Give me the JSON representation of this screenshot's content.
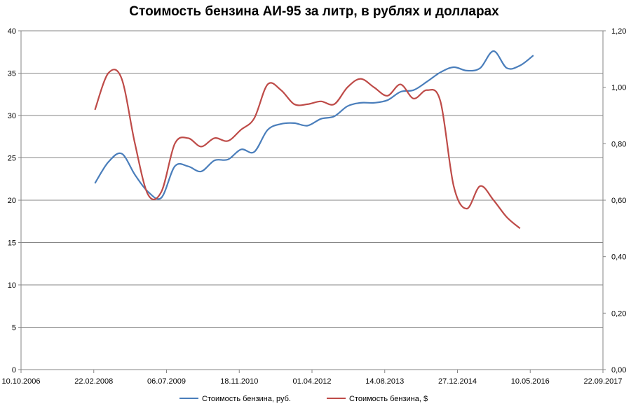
{
  "chart_data": {
    "type": "line",
    "title": "Стоимость бензина АИ-95 за литр, в рублях и долларах",
    "x_axis": {
      "type": "date",
      "range": [
        "2006-10-10",
        "2017-09-22"
      ],
      "tick_labels": [
        "10.10.2006",
        "22.02.2008",
        "06.07.2009",
        "18.11.2010",
        "01.04.2012",
        "14.08.2013",
        "27.12.2014",
        "10.05.2016",
        "22.09.2017"
      ]
    },
    "y_axis_left": {
      "range": [
        0,
        40
      ],
      "tick_labels": [
        "0",
        "5",
        "10",
        "15",
        "20",
        "25",
        "30",
        "35",
        "40"
      ]
    },
    "y_axis_right": {
      "range": [
        0,
        1.2
      ],
      "tick_labels": [
        "0,00",
        "0,20",
        "0,40",
        "0,60",
        "0,80",
        "1,00",
        "1,20"
      ]
    },
    "grid": true,
    "legend_position": "bottom",
    "series": [
      {
        "name": "Стоимость бензина, руб.",
        "axis": "left",
        "color": "#4a7ebb",
        "points": [
          [
            "2008-03-01",
            22.0
          ],
          [
            "2008-06-01",
            24.5
          ],
          [
            "2008-09-01",
            25.5
          ],
          [
            "2008-12-01",
            23.0
          ],
          [
            "2009-03-01",
            21.0
          ],
          [
            "2009-06-01",
            20.3
          ],
          [
            "2009-09-01",
            24.0
          ],
          [
            "2009-12-01",
            24.0
          ],
          [
            "2010-03-01",
            23.4
          ],
          [
            "2010-06-01",
            24.7
          ],
          [
            "2010-09-01",
            24.8
          ],
          [
            "2010-12-01",
            26.0
          ],
          [
            "2011-03-01",
            25.7
          ],
          [
            "2011-06-01",
            28.3
          ],
          [
            "2011-09-01",
            29.0
          ],
          [
            "2011-12-01",
            29.1
          ],
          [
            "2012-03-01",
            28.8
          ],
          [
            "2012-06-01",
            29.6
          ],
          [
            "2012-09-01",
            29.9
          ],
          [
            "2012-12-01",
            31.1
          ],
          [
            "2013-03-01",
            31.5
          ],
          [
            "2013-06-01",
            31.5
          ],
          [
            "2013-09-01",
            31.8
          ],
          [
            "2013-12-01",
            32.8
          ],
          [
            "2014-03-01",
            33.0
          ],
          [
            "2014-06-01",
            34.0
          ],
          [
            "2014-09-01",
            35.1
          ],
          [
            "2014-12-01",
            35.7
          ],
          [
            "2015-03-01",
            35.3
          ],
          [
            "2015-06-01",
            35.6
          ],
          [
            "2015-09-01",
            37.6
          ],
          [
            "2015-12-01",
            35.6
          ],
          [
            "2016-03-01",
            35.9
          ],
          [
            "2016-06-01",
            37.1
          ]
        ]
      },
      {
        "name": "Стоимость бензина, $",
        "axis": "right",
        "color": "#be4b48",
        "points": [
          [
            "2008-03-01",
            0.92
          ],
          [
            "2008-06-01",
            1.05
          ],
          [
            "2008-09-01",
            1.03
          ],
          [
            "2008-12-01",
            0.8
          ],
          [
            "2009-03-01",
            0.62
          ],
          [
            "2009-06-01",
            0.63
          ],
          [
            "2009-09-01",
            0.8
          ],
          [
            "2009-12-01",
            0.82
          ],
          [
            "2010-03-01",
            0.79
          ],
          [
            "2010-06-01",
            0.82
          ],
          [
            "2010-09-01",
            0.81
          ],
          [
            "2010-12-01",
            0.85
          ],
          [
            "2011-03-01",
            0.89
          ],
          [
            "2011-06-01",
            1.01
          ],
          [
            "2011-09-01",
            0.99
          ],
          [
            "2011-12-01",
            0.94
          ],
          [
            "2012-03-01",
            0.94
          ],
          [
            "2012-06-01",
            0.95
          ],
          [
            "2012-09-01",
            0.94
          ],
          [
            "2012-12-01",
            1.0
          ],
          [
            "2013-03-01",
            1.03
          ],
          [
            "2013-06-01",
            1.0
          ],
          [
            "2013-09-01",
            0.97
          ],
          [
            "2013-12-01",
            1.01
          ],
          [
            "2014-03-01",
            0.96
          ],
          [
            "2014-06-01",
            0.99
          ],
          [
            "2014-09-01",
            0.95
          ],
          [
            "2014-12-01",
            0.65
          ],
          [
            "2015-03-01",
            0.57
          ],
          [
            "2015-06-01",
            0.65
          ],
          [
            "2015-09-01",
            0.6
          ],
          [
            "2015-12-01",
            0.54
          ],
          [
            "2016-03-01",
            0.5
          ]
        ]
      }
    ]
  }
}
